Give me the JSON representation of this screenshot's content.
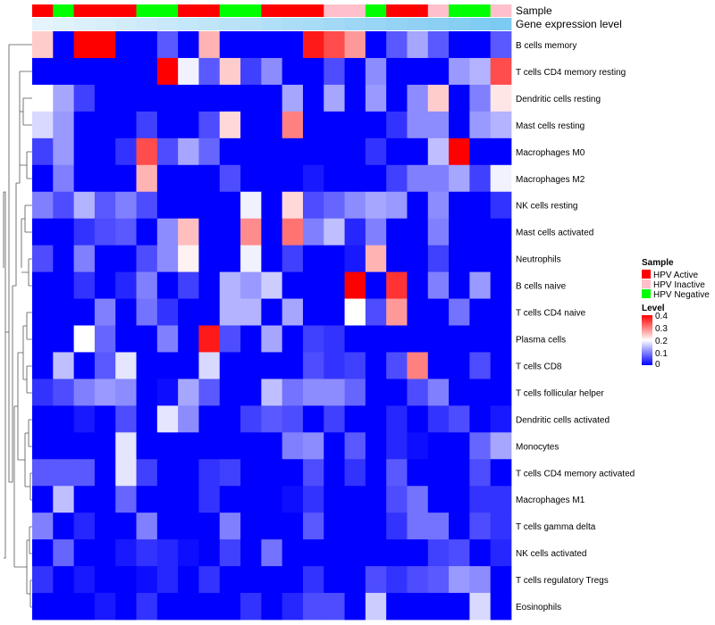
{
  "chart_data": {
    "type": "heatmap",
    "annotation_titles": {
      "sample": "Sample",
      "expression": "Gene expression level"
    },
    "rows": [
      "B cells memory",
      "T cells CD4 memory resting",
      "Dendritic cells resting",
      "Mast cells resting",
      "Macrophages M0",
      "Macrophages M2",
      "NK cells resting",
      "Mast cells activated",
      "Neutrophils",
      "B cells naive",
      "T cells CD4 naive",
      "Plasma cells",
      "T cells CD8",
      "T cells follicular helper",
      "Dendritic cells activated",
      "Monocytes",
      "T cells CD4 memory activated",
      "Macrophages M1",
      "T cells gamma delta",
      "NK cells activated",
      "T cells regulatory  Tregs",
      "Eosinophils"
    ],
    "column_samples": [
      "HPV Active",
      "HPV Negative",
      "HPV Active",
      "HPV Active",
      "HPV Active",
      "HPV Negative",
      "HPV Negative",
      "HPV Active",
      "HPV Active",
      "HPV Negative",
      "HPV Negative",
      "HPV Active",
      "HPV Active",
      "HPV Active",
      "HPV Inactive",
      "HPV Inactive",
      "HPV Negative",
      "HPV Active",
      "HPV Active",
      "HPV Inactive",
      "HPV Negative",
      "HPV Negative",
      "HPV Inactive"
    ],
    "column_expression": [
      0.02,
      0.05,
      0.08,
      0.12,
      0.16,
      0.2,
      0.24,
      0.28,
      0.32,
      0.36,
      0.4,
      0.44,
      0.48,
      0.52,
      0.56,
      0.6,
      0.64,
      0.68,
      0.72,
      0.76,
      0.8,
      0.84,
      0.88
    ],
    "values": [
      [
        0.24,
        0.0,
        0.4,
        0.4,
        0.0,
        0.0,
        0.07,
        0.0,
        0.26,
        0.0,
        0.0,
        0.0,
        0.0,
        0.38,
        0.34,
        0.28,
        0.0,
        0.07,
        0.13,
        0.07,
        0.0,
        0.0,
        0.07
      ],
      [
        0.0,
        0.0,
        0.0,
        0.0,
        0.0,
        0.0,
        0.4,
        0.19,
        0.07,
        0.24,
        0.05,
        0.11,
        0.0,
        0.0,
        0.06,
        0.0,
        0.11,
        0.0,
        0.0,
        0.0,
        0.12,
        0.14,
        0.34
      ],
      [
        0.2,
        0.13,
        0.05,
        0.0,
        0.0,
        0.0,
        0.0,
        0.0,
        0.0,
        0.0,
        0.0,
        0.0,
        0.13,
        0.0,
        0.13,
        0.0,
        0.12,
        0.0,
        0.11,
        0.24,
        0.0,
        0.1,
        0.22
      ],
      [
        0.17,
        0.12,
        0.0,
        0.0,
        0.0,
        0.05,
        0.0,
        0.0,
        0.06,
        0.23,
        0.0,
        0.0,
        0.3,
        0.0,
        0.0,
        0.0,
        0.0,
        0.04,
        0.11,
        0.11,
        0.0,
        0.12,
        0.14
      ],
      [
        0.05,
        0.12,
        0.0,
        0.0,
        0.04,
        0.34,
        0.06,
        0.13,
        0.08,
        0.0,
        0.0,
        0.0,
        0.0,
        0.0,
        0.0,
        0.0,
        0.04,
        0.0,
        0.0,
        0.15,
        0.4,
        0.0,
        0.0
      ],
      [
        0.0,
        0.1,
        0.0,
        0.0,
        0.0,
        0.26,
        0.0,
        0.0,
        0.0,
        0.06,
        0.0,
        0.0,
        0.0,
        0.02,
        0.0,
        0.0,
        0.0,
        0.05,
        0.1,
        0.1,
        0.13,
        0.05,
        0.19
      ],
      [
        0.1,
        0.06,
        0.14,
        0.07,
        0.1,
        0.06,
        0.0,
        0.0,
        0.0,
        0.0,
        0.19,
        0.0,
        0.23,
        0.06,
        0.08,
        0.11,
        0.13,
        0.12,
        0.0,
        0.11,
        0.0,
        0.0,
        0.04
      ],
      [
        0.0,
        0.0,
        0.04,
        0.06,
        0.07,
        0.0,
        0.11,
        0.25,
        0.0,
        0.0,
        0.29,
        0.0,
        0.31,
        0.1,
        0.15,
        0.03,
        0.1,
        0.0,
        0.0,
        0.1,
        0.0,
        0.0,
        0.0
      ],
      [
        0.06,
        0.0,
        0.1,
        0.0,
        0.0,
        0.06,
        0.11,
        0.21,
        0.0,
        0.0,
        0.19,
        0.0,
        0.05,
        0.0,
        0.0,
        0.02,
        0.26,
        0.0,
        0.0,
        0.05,
        0.0,
        0.0,
        0.0
      ],
      [
        0.0,
        0.0,
        0.04,
        0.0,
        0.03,
        0.1,
        0.0,
        0.05,
        0.0,
        0.14,
        0.12,
        0.16,
        0.0,
        0.0,
        0.0,
        0.4,
        0.0,
        0.36,
        0.0,
        0.1,
        0.0,
        0.12,
        0.0
      ],
      [
        0.0,
        0.0,
        0.0,
        0.1,
        0.0,
        0.09,
        0.04,
        0.0,
        0.0,
        0.14,
        0.14,
        0.0,
        0.13,
        0.0,
        0.0,
        0.2,
        0.06,
        0.28,
        0.0,
        0.0,
        0.09,
        0.0,
        0.0
      ],
      [
        0.0,
        0.0,
        0.2,
        0.08,
        0.0,
        0.0,
        0.1,
        0.0,
        0.38,
        0.06,
        0.0,
        0.13,
        0.0,
        0.05,
        0.04,
        0.0,
        0.0,
        0.0,
        0.0,
        0.0,
        0.0,
        0.0,
        0.0
      ],
      [
        0.0,
        0.15,
        0.0,
        0.07,
        0.18,
        0.0,
        0.0,
        0.0,
        0.17,
        0.0,
        0.0,
        0.0,
        0.0,
        0.06,
        0.04,
        0.05,
        0.0,
        0.06,
        0.3,
        0.0,
        0.0,
        0.06,
        0.0
      ],
      [
        0.04,
        0.06,
        0.1,
        0.12,
        0.11,
        0.0,
        0.01,
        0.13,
        0.07,
        0.0,
        0.0,
        0.15,
        0.09,
        0.11,
        0.11,
        0.08,
        0.0,
        0.0,
        0.06,
        0.1,
        0.0,
        0.0,
        0.0
      ],
      [
        0.0,
        0.0,
        0.02,
        0.0,
        0.06,
        0.0,
        0.18,
        0.11,
        0.0,
        0.0,
        0.05,
        0.07,
        0.06,
        0.0,
        0.05,
        0.0,
        0.0,
        0.03,
        0.0,
        0.04,
        0.06,
        0.0,
        0.02
      ],
      [
        0.0,
        0.0,
        0.0,
        0.0,
        0.18,
        0.0,
        0.0,
        0.0,
        0.0,
        0.0,
        0.0,
        0.0,
        0.1,
        0.11,
        0.0,
        0.07,
        0.0,
        0.03,
        0.01,
        0.0,
        0.0,
        0.08,
        0.13
      ],
      [
        0.07,
        0.07,
        0.07,
        0.0,
        0.18,
        0.05,
        0.0,
        0.0,
        0.04,
        0.05,
        0.0,
        0.0,
        0.0,
        0.06,
        0.0,
        0.04,
        0.0,
        0.07,
        0.0,
        0.0,
        0.0,
        0.06,
        0.0
      ],
      [
        0.0,
        0.15,
        0.0,
        0.0,
        0.08,
        0.0,
        0.0,
        0.0,
        0.04,
        0.0,
        0.0,
        0.0,
        0.01,
        0.04,
        0.0,
        0.0,
        0.0,
        0.06,
        0.09,
        0.0,
        0.0,
        0.04,
        0.04
      ],
      [
        0.1,
        0.0,
        0.03,
        0.0,
        0.0,
        0.1,
        0.0,
        0.0,
        0.0,
        0.1,
        0.0,
        0.0,
        0.0,
        0.07,
        0.0,
        0.0,
        0.0,
        0.04,
        0.09,
        0.09,
        0.0,
        0.06,
        0.04
      ],
      [
        0.0,
        0.08,
        0.0,
        0.0,
        0.02,
        0.04,
        0.03,
        0.01,
        0.0,
        0.05,
        0.0,
        0.09,
        0.0,
        0.0,
        0.0,
        0.0,
        0.0,
        0.0,
        0.0,
        0.05,
        0.06,
        0.0,
        0.03
      ],
      [
        0.04,
        0.0,
        0.02,
        0.0,
        0.0,
        0.01,
        0.03,
        0.0,
        0.04,
        0.0,
        0.0,
        0.0,
        0.0,
        0.04,
        0.0,
        0.0,
        0.06,
        0.04,
        0.06,
        0.07,
        0.12,
        0.11,
        0.0
      ],
      [
        0.0,
        0.0,
        0.0,
        0.02,
        0.0,
        0.04,
        0.0,
        0.0,
        0.0,
        0.0,
        0.04,
        0.0,
        0.03,
        0.06,
        0.06,
        0.0,
        0.16,
        0.0,
        0.0,
        0.0,
        0.0,
        0.17,
        0.0
      ]
    ],
    "color_scale": {
      "min": 0,
      "mid": 0.2,
      "max": 0.4,
      "low_color": "#0000ff",
      "mid_color": "#ffffff",
      "high_color": "#ff0000"
    },
    "legend": {
      "sample_title": "Sample",
      "sample_entries": [
        {
          "label": "HPV Active",
          "color": "#ff0000"
        },
        {
          "label": "HPV Inactive",
          "color": "#ffc0cb"
        },
        {
          "label": "HPV Negative",
          "color": "#00ff00"
        }
      ],
      "level_title": "Level",
      "level_ticks": [
        "0.4",
        "0.3",
        "0.2",
        "0.1",
        "0"
      ]
    },
    "expression_colors": {
      "low": "#e6f4fc",
      "high": "#6ec4f0"
    },
    "dendrogram": "row clustering tree (left)"
  }
}
